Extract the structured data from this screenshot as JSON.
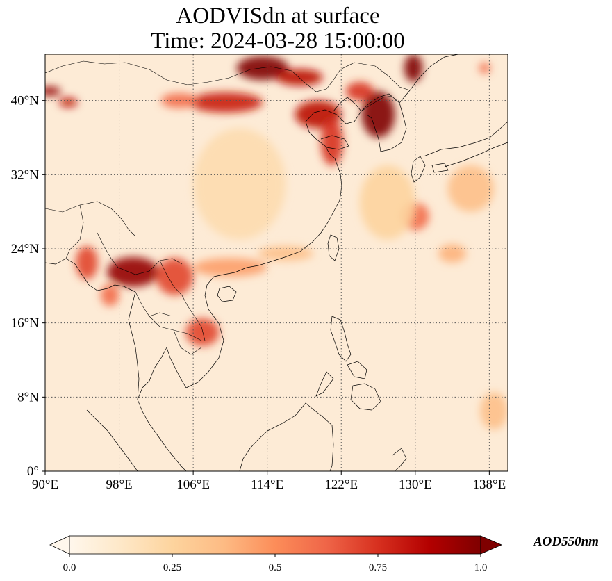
{
  "title": {
    "line1": "AODVISdn at surface",
    "line2": "Time: 2024-03-28 15:00:00"
  },
  "map": {
    "lon_range": [
      90,
      140
    ],
    "lat_range": [
      0,
      45
    ],
    "lon_ticks": [
      {
        "value": 90,
        "label": "90°E"
      },
      {
        "value": 98,
        "label": "98°E"
      },
      {
        "value": 106,
        "label": "106°E"
      },
      {
        "value": 114,
        "label": "114°E"
      },
      {
        "value": 122,
        "label": "122°E"
      },
      {
        "value": 130,
        "label": "130°E"
      },
      {
        "value": 138,
        "label": "138°E"
      }
    ],
    "lat_ticks": [
      {
        "value": 0,
        "label": "0°"
      },
      {
        "value": 8,
        "label": "8°N"
      },
      {
        "value": 16,
        "label": "16°N"
      },
      {
        "value": 24,
        "label": "24°N"
      },
      {
        "value": 32,
        "label": "32°N"
      },
      {
        "value": 40,
        "label": "40°N"
      }
    ],
    "gridlines": true,
    "background_color": "#fdebd6",
    "plumes": [
      {
        "lon": 113.5,
        "lat": 43.5,
        "rx": 2.8,
        "ry": 1.3,
        "v": 1.0
      },
      {
        "lon": 117.5,
        "lat": 42.5,
        "rx": 2.5,
        "ry": 0.9,
        "v": 0.85
      },
      {
        "lon": 109.5,
        "lat": 39.8,
        "rx": 4.0,
        "ry": 1.1,
        "v": 0.8
      },
      {
        "lon": 104.5,
        "lat": 40.0,
        "rx": 2.0,
        "ry": 0.8,
        "v": 0.6
      },
      {
        "lon": 119.5,
        "lat": 38.5,
        "rx": 2.5,
        "ry": 1.5,
        "v": 0.85
      },
      {
        "lon": 121.0,
        "lat": 35.5,
        "rx": 1.2,
        "ry": 2.5,
        "v": 0.75
      },
      {
        "lon": 126.0,
        "lat": 38.5,
        "rx": 1.8,
        "ry": 2.5,
        "v": 1.0
      },
      {
        "lon": 129.8,
        "lat": 43.5,
        "rx": 1.0,
        "ry": 1.5,
        "v": 1.0
      },
      {
        "lon": 124.0,
        "lat": 41.0,
        "rx": 1.5,
        "ry": 1.0,
        "v": 0.75
      },
      {
        "lon": 90.5,
        "lat": 41.0,
        "rx": 1.2,
        "ry": 0.5,
        "v": 0.95
      },
      {
        "lon": 92.5,
        "lat": 39.8,
        "rx": 1.0,
        "ry": 0.5,
        "v": 0.85
      },
      {
        "lon": 137.5,
        "lat": 43.5,
        "rx": 0.6,
        "ry": 0.6,
        "v": 0.6
      },
      {
        "lon": 99.5,
        "lat": 21.5,
        "rx": 2.8,
        "ry": 1.6,
        "v": 0.95
      },
      {
        "lon": 94.5,
        "lat": 22.5,
        "rx": 1.2,
        "ry": 1.8,
        "v": 0.7
      },
      {
        "lon": 104.0,
        "lat": 21.0,
        "rx": 2.0,
        "ry": 2.0,
        "v": 0.7
      },
      {
        "lon": 107.0,
        "lat": 15.0,
        "rx": 1.8,
        "ry": 1.5,
        "v": 0.7
      },
      {
        "lon": 110.0,
        "lat": 22.0,
        "rx": 4.0,
        "ry": 1.0,
        "v": 0.45
      },
      {
        "lon": 116.0,
        "lat": 23.5,
        "rx": 3.0,
        "ry": 0.8,
        "v": 0.35
      },
      {
        "lon": 111.0,
        "lat": 31.0,
        "rx": 5.0,
        "ry": 6.0,
        "v": 0.2
      },
      {
        "lon": 130.0,
        "lat": 27.5,
        "rx": 1.5,
        "ry": 1.5,
        "v": 0.6
      },
      {
        "lon": 136.0,
        "lat": 30.5,
        "rx": 2.5,
        "ry": 2.5,
        "v": 0.35
      },
      {
        "lon": 134.0,
        "lat": 23.5,
        "rx": 1.5,
        "ry": 1.0,
        "v": 0.4
      },
      {
        "lon": 127.0,
        "lat": 29.0,
        "rx": 3.0,
        "ry": 4.0,
        "v": 0.25
      },
      {
        "lon": 138.5,
        "lat": 6.5,
        "rx": 1.5,
        "ry": 2.0,
        "v": 0.35
      },
      {
        "lon": 97.0,
        "lat": 19.0,
        "rx": 1.0,
        "ry": 1.2,
        "v": 0.6
      }
    ]
  },
  "colorbar": {
    "label": "AOD550nm",
    "min": 0.0,
    "max": 1.0,
    "extend": "both",
    "colormap": "OrRd",
    "stops": [
      "#fff7ec",
      "#fee8c8",
      "#fdd49e",
      "#fdbb84",
      "#fc8d59",
      "#ef6548",
      "#d7301f",
      "#b30000",
      "#7f0000"
    ],
    "ticks": [
      {
        "value": 0.0,
        "label": "0.0"
      },
      {
        "value": 0.25,
        "label": "0.25"
      },
      {
        "value": 0.5,
        "label": "0.5"
      },
      {
        "value": 0.75,
        "label": "0.75"
      },
      {
        "value": 1.0,
        "label": "1.0"
      }
    ]
  }
}
